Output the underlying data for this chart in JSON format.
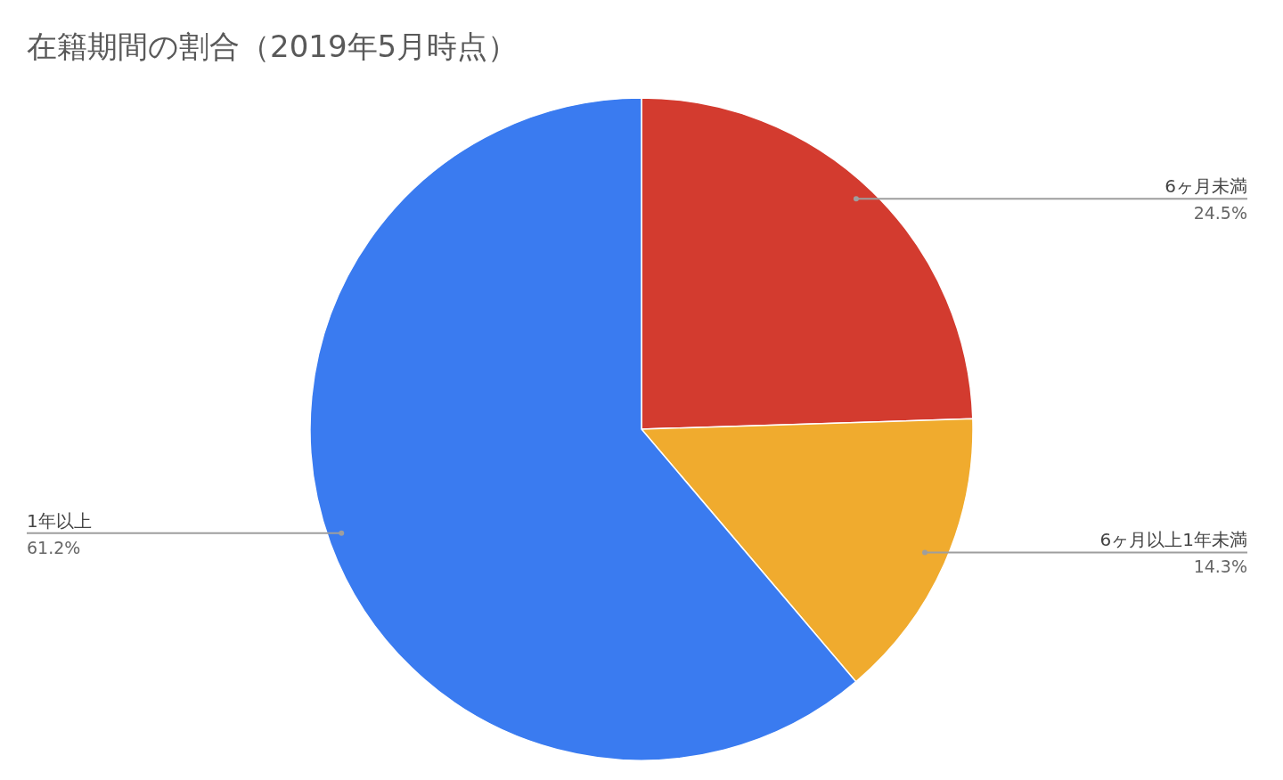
{
  "chart_data": {
    "type": "pie",
    "title": "在籍期間の割合（2019年5月時点）",
    "categories": [
      "6ヶ月未満",
      "6ヶ月以上1年未満",
      "1年以上"
    ],
    "values": [
      24.5,
      14.3,
      61.2
    ],
    "colors": [
      "#d33b2f",
      "#f0ab2e",
      "#3a7bf0"
    ],
    "value_labels": [
      "24.5%",
      "14.3%",
      "61.2%"
    ],
    "legend": false
  }
}
